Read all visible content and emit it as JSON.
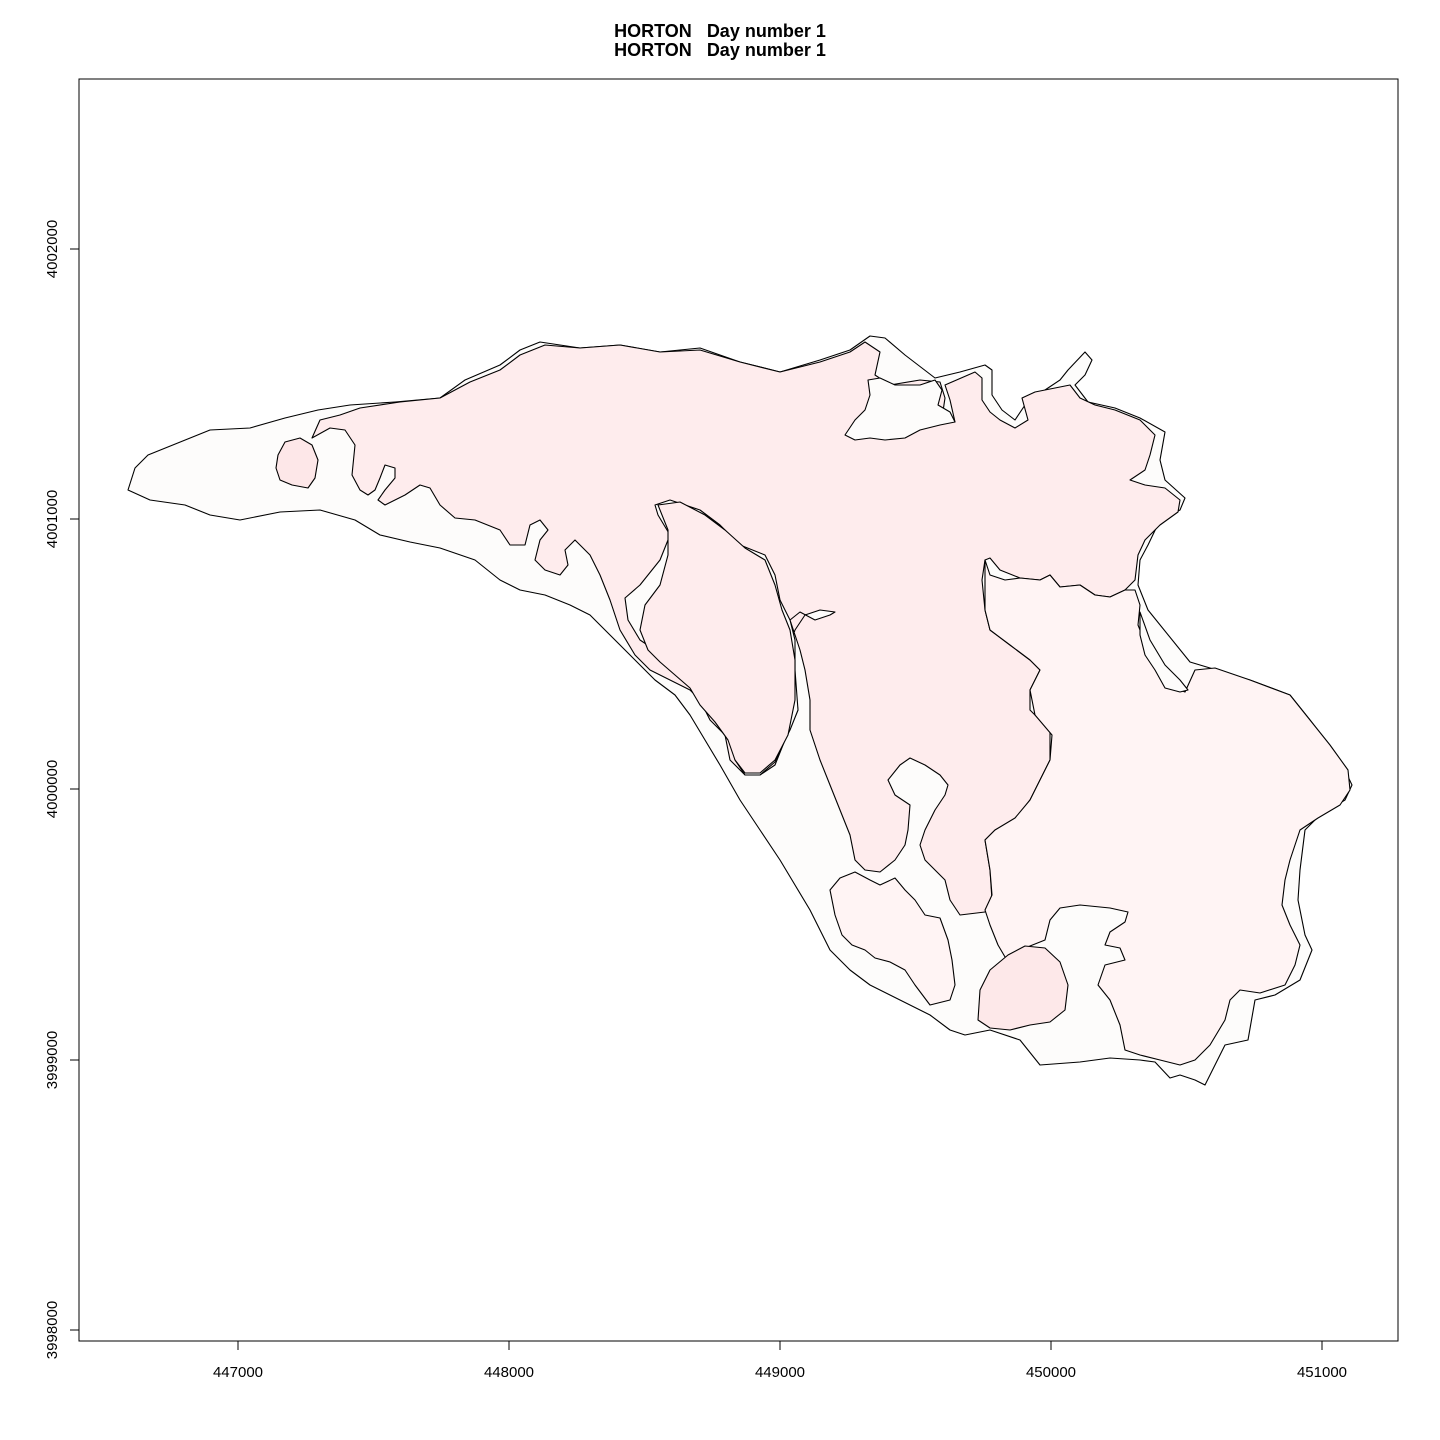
{
  "chart_data": {
    "type": "map",
    "title_lines": [
      "HORTON   Day number 1",
      "HORTON   Day number 1"
    ],
    "x_ticks": [
      "447000",
      "448000",
      "449000",
      "450000",
      "451000"
    ],
    "y_ticks": [
      "3998000",
      "3999000",
      "4000000",
      "4001000",
      "4002000"
    ],
    "region_fill_colors": {
      "outline": "#fdfcfb",
      "main_area": "#feeced",
      "west_blob": "#fde7e8",
      "southeast_area": "#fff4f4",
      "south_blob": "#fde8e9"
    }
  }
}
